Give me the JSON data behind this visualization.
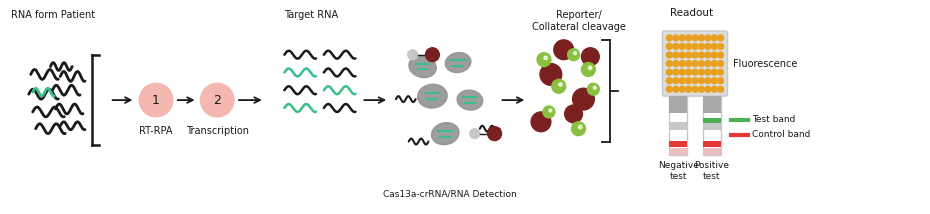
{
  "bg_color": "#ffffff",
  "label_rna_patient": "RNA form Patient",
  "label_target_rna": "Target RNA",
  "label_rt_rpa": "RT-RPA",
  "label_transcription": "Transcription",
  "label_cas13": "Cas13a-crRNA/RNA Detection",
  "label_reporter": "Reporter/\nCollateral cleavage",
  "label_readout": "Readout",
  "label_fluorescence": "Fluorescence",
  "label_test_band": "Test band",
  "label_control_band": "Control band",
  "label_negative": "Negative\ntest",
  "label_positive": "Positive\ntest",
  "color_black": "#1a1a1a",
  "color_green": "#3abf8a",
  "color_pink_circle": "#f5b8b0",
  "color_gray_blob": "#929292",
  "color_dark_red": "#7a2020",
  "color_lime": "#88c040",
  "color_orange_dot": "#e8a020",
  "color_light_gray": "#c8c8c8",
  "color_mid_gray": "#a8a8a8",
  "color_test_band_green": "#4caf50",
  "color_control_band_red": "#e53935",
  "color_plate_bg": "#dcdcdc"
}
